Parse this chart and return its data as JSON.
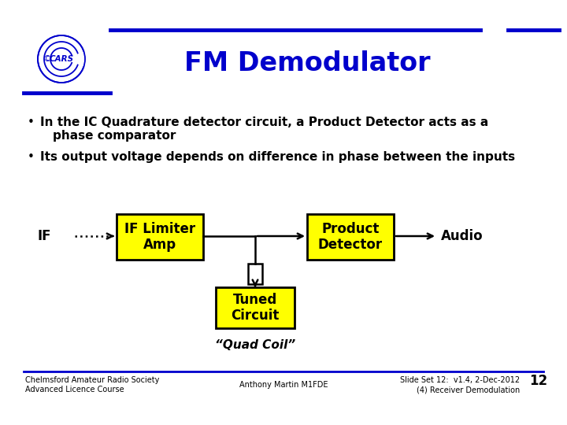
{
  "title": "FM Demodulator",
  "title_color": "#0000CC",
  "background_color": "#FFFFFF",
  "bullet1_line1": "In the IC Quadrature detector circuit, a Product Detector acts as a",
  "bullet1_line2": "phase comparator",
  "bullet2": "Its output voltage depends on difference in phase between the inputs",
  "bullet_color": "#000000",
  "box_fill": "#FFFF00",
  "box_edge": "#000000",
  "line_color": "#000000",
  "header_line_color": "#0000CC",
  "footer_line_color": "#0000CC",
  "box1_label1": "IF Limiter",
  "box1_label2": "Amp",
  "box2_label1": "Product",
  "box2_label2": "Detector",
  "box3_label1": "Tuned",
  "box3_label2": "Circuit",
  "box3_sub": "“Quad Coil”",
  "if_label": "IF",
  "audio_label": "Audio",
  "footer_left1": "Chelmsford Amateur Radio Society",
  "footer_left2": "Advanced Licence Course",
  "footer_center": "Anthony Martin M1FDE",
  "footer_right1": "Slide Set 12:  v1.4, 2-Dec-2012",
  "footer_right2": "(4) Receiver Demodulation",
  "slide_number": "12",
  "logo_color": "#0000CC"
}
